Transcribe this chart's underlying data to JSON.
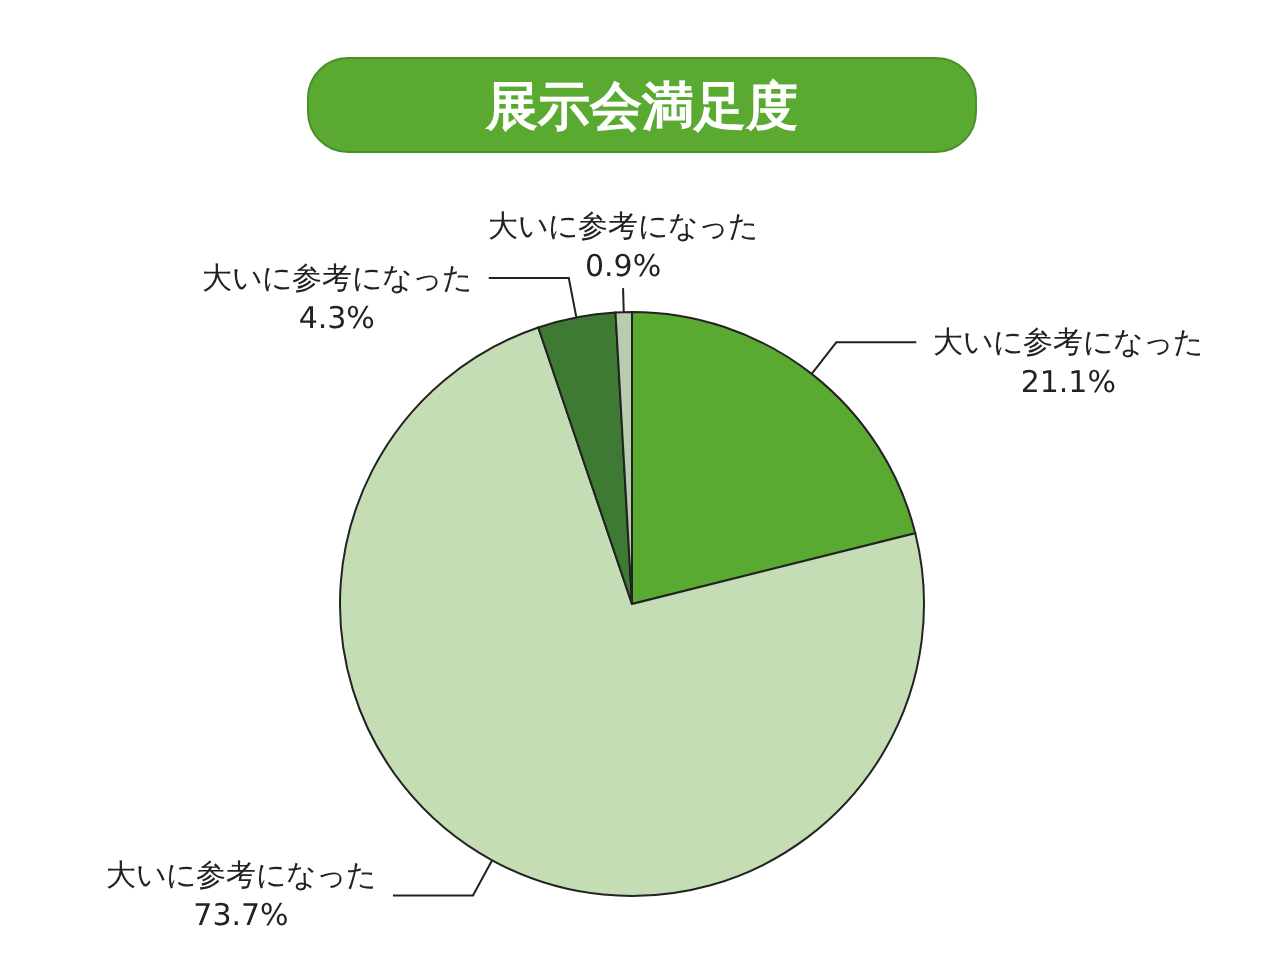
{
  "chart_data": {
    "type": "pie",
    "title": "展示会満足度",
    "categories": [
      "大いに参考になった",
      "大いに参考になった",
      "大いに参考になった",
      "大いに参考になった"
    ],
    "values": [
      21.1,
      73.7,
      4.3,
      0.9
    ],
    "value_labels": [
      "21.1%",
      "73.7%",
      "4.3%",
      "0.9%"
    ],
    "colors": [
      "#5aaa32",
      "#c4ddb4",
      "#3f7a34",
      "#b8ccb0"
    ]
  }
}
